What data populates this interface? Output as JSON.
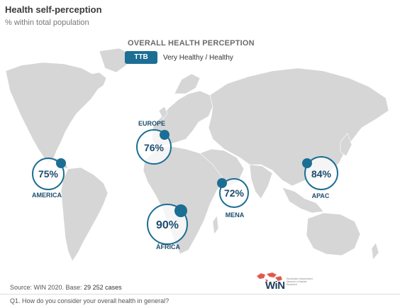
{
  "header": {
    "title": "Health self-perception",
    "subtitle": "% within total population"
  },
  "legend": {
    "title": "OVERALL HEALTH PERCEPTION",
    "badge": "TTB",
    "label": "Very Healthy / Healthy"
  },
  "regions": [
    {
      "name": "EUROPE",
      "value": "76%"
    },
    {
      "name": "AMERICA",
      "value": "75%"
    },
    {
      "name": "MENA",
      "value": "72%"
    },
    {
      "name": "APAC",
      "value": "84%"
    },
    {
      "name": "ÁFRICA",
      "value": "90%"
    }
  ],
  "footer": {
    "source_prefix": "Source: WIN 2020. Base:",
    "source_base": "29 252 cases",
    "question": "Q1. How do you consider your overall health in general?"
  },
  "logo": {
    "word": "WiN",
    "tagline": "Worldwide Independent Network of Market Research"
  },
  "colors": {
    "accent": "#1c6e94",
    "land": "#d6d6d6",
    "text_dark": "#1d4d6d"
  }
}
